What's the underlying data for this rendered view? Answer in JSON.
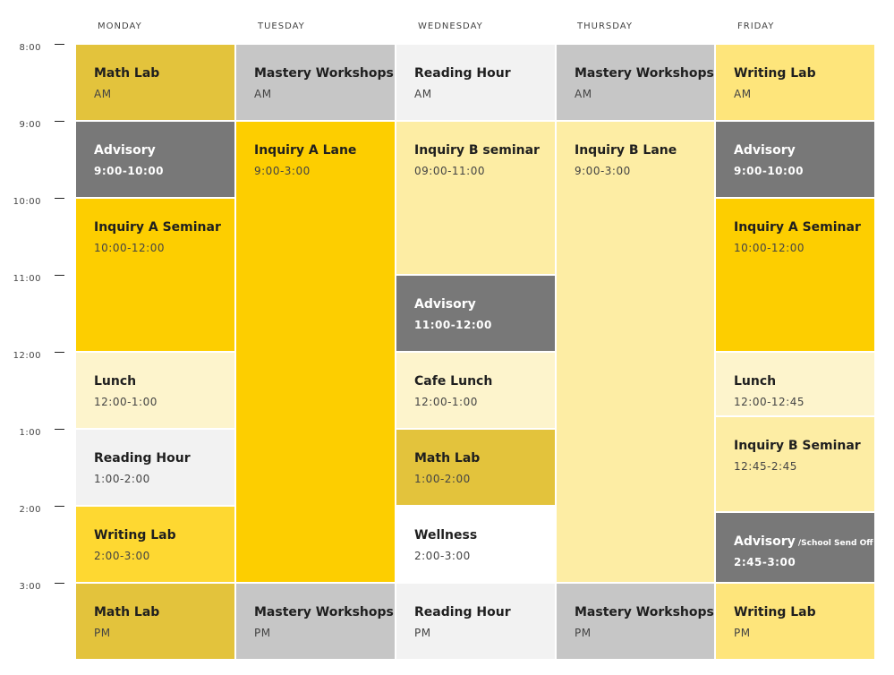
{
  "days": [
    "MONDAY",
    "TUESDAY",
    "WEDNESDAY",
    "THURSDAY",
    "FRIDAY"
  ],
  "times": [
    "8:00",
    "9:00",
    "10:00",
    "11:00",
    "12:00",
    "1:00",
    "2:00",
    "3:00"
  ],
  "colors": {
    "mustard": "#e3c33c",
    "gray": "#c6c6c6",
    "light": "#f2f2f2",
    "dark": "#787878",
    "gold": "#fdce00",
    "pale": "#fdeda4",
    "cream": "#fdf4cc",
    "bright": "#fed831",
    "soft": "#fee57b",
    "white": "#ffffff"
  },
  "schedule": [
    [
      {
        "title": "Math Lab",
        "sub": "AM",
        "color": "mustard"
      },
      {
        "title": "Advisory",
        "sub": "9:00-10:00",
        "color": "dark"
      },
      {
        "title": "Inquiry A Seminar",
        "sub": "10:00-12:00",
        "color": "gold"
      },
      {
        "title": "Lunch",
        "sub": "12:00-1:00",
        "color": "cream"
      },
      {
        "title": "Reading Hour",
        "sub": "1:00-2:00",
        "color": "light"
      },
      {
        "title": "Writing Lab",
        "sub": "2:00-3:00",
        "color": "bright"
      },
      {
        "title": "Math Lab",
        "sub": "PM",
        "color": "mustard"
      }
    ],
    [
      {
        "title": "Mastery Workshops",
        "sub": "AM",
        "color": "gray"
      },
      {
        "title": "Inquiry A Lane",
        "sub": "9:00-3:00",
        "color": "gold"
      },
      {
        "title": "Mastery Workshops",
        "sub": "PM",
        "color": "gray"
      }
    ],
    [
      {
        "title": "Reading Hour",
        "sub": "AM",
        "color": "light"
      },
      {
        "title": "Inquiry B seminar",
        "sub": "09:00-11:00",
        "color": "pale"
      },
      {
        "title": "Advisory",
        "sub": "11:00-12:00",
        "color": "dark"
      },
      {
        "title": "Cafe Lunch",
        "sub": "12:00-1:00",
        "color": "cream"
      },
      {
        "title": "Math Lab",
        "sub": "1:00-2:00",
        "color": "mustard"
      },
      {
        "title": "Wellness",
        "sub": "2:00-3:00",
        "color": "white"
      },
      {
        "title": "Reading Hour",
        "sub": "PM",
        "color": "light"
      }
    ],
    [
      {
        "title": "Mastery Workshops",
        "sub": "AM",
        "color": "gray"
      },
      {
        "title": "Inquiry B Lane",
        "sub": "9:00-3:00",
        "color": "pale"
      },
      {
        "title": "Mastery Workshops",
        "sub": "PM",
        "color": "gray"
      }
    ],
    [
      {
        "title": "Writing Lab",
        "sub": "AM",
        "color": "soft"
      },
      {
        "title": "Advisory",
        "sub": "9:00-10:00",
        "color": "dark"
      },
      {
        "title": "Inquiry A Seminar",
        "sub": "10:00-12:00",
        "color": "gold"
      },
      {
        "title": "Lunch",
        "sub": "12:00-12:45",
        "color": "cream"
      },
      {
        "title": "Inquiry B Seminar",
        "sub": "12:45-2:45",
        "color": "pale"
      },
      {
        "title": "Advisory",
        "suffix": " /School Send Off",
        "sub": "2:45-3:00",
        "color": "dark"
      },
      {
        "title": "Writing Lab",
        "sub": "PM",
        "color": "soft"
      }
    ]
  ]
}
